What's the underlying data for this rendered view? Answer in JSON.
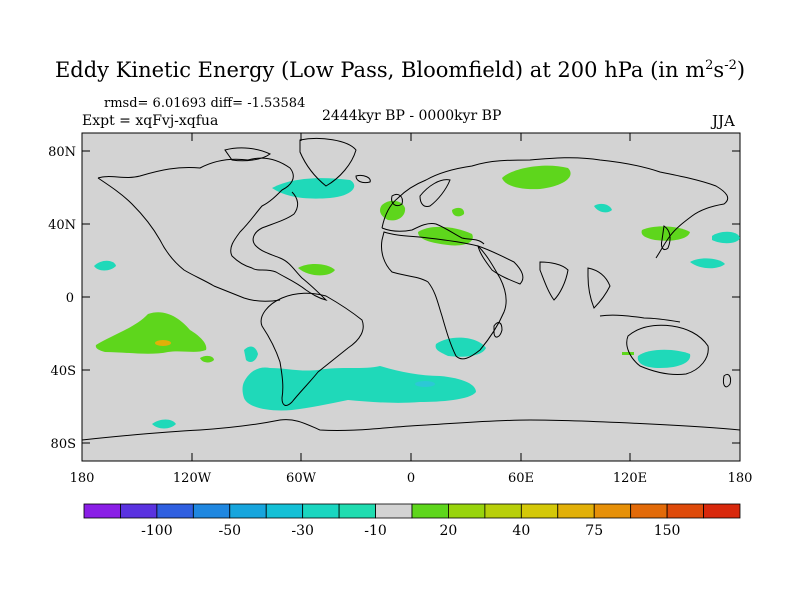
{
  "title": "Eddy Kinetic Energy (Low Pass, Bloomfield) at 200 hPa (in m",
  "title_sup1": "2",
  "title_mid": "s",
  "title_sup2": "-2",
  "title_end": ")",
  "stats": "rmsd= 6.01693 diff= -1.53584",
  "experiment": "Expt = xqFvj-xqfua",
  "period": "2444kyr BP - 0000kyr BP",
  "season": "JJA",
  "lat_ticks": [
    "80N",
    "40N",
    "0",
    "40S",
    "80S"
  ],
  "lon_ticks": [
    "180",
    "120W",
    "60W",
    "0",
    "60E",
    "120E",
    "180"
  ],
  "colorbar": {
    "labels": [
      "-100",
      "-50",
      "-30",
      "-10",
      "20",
      "40",
      "75",
      "150"
    ],
    "colors": [
      "#8a1ee6",
      "#5a32e0",
      "#2f5fe0",
      "#1f87e0",
      "#17a5dd",
      "#14c0d6",
      "#1ad6c0",
      "#20dcb0",
      "#d3d3d3",
      "#5ed61c",
      "#98d40c",
      "#b8cf0a",
      "#d4c808",
      "#e2b008",
      "#e69008",
      "#e26a08",
      "#de4a0a",
      "#d8280c"
    ]
  },
  "colors": {
    "land_sea": "#d3d3d3",
    "teal": "#1fd9b9",
    "cyan": "#2cc8d6",
    "green": "#5ed61c",
    "orange": "#e2b008"
  }
}
